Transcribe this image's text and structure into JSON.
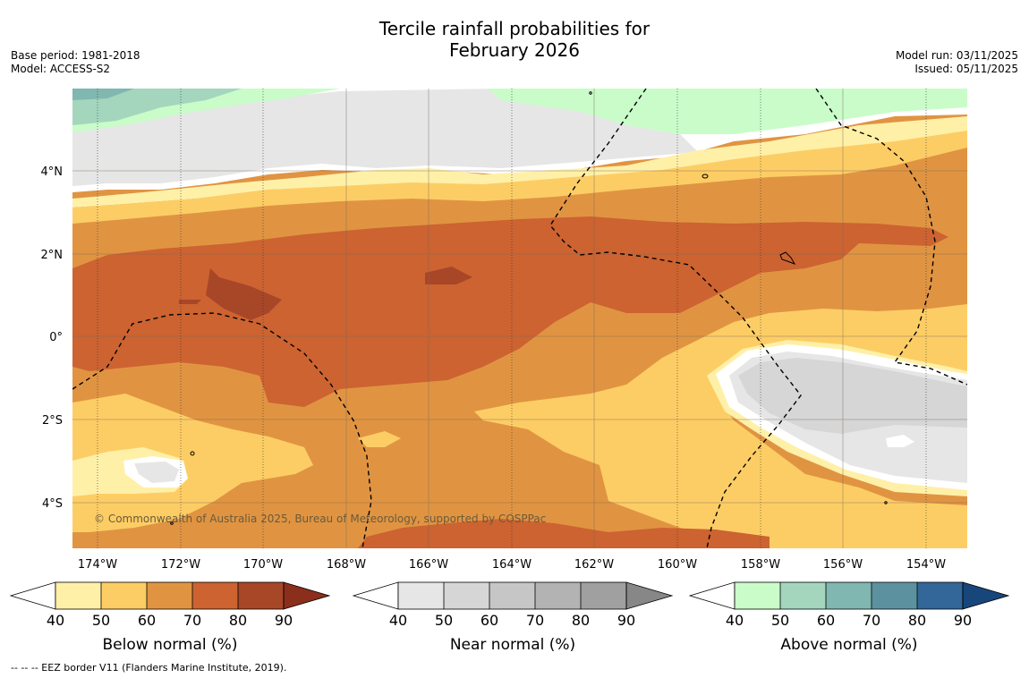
{
  "title": {
    "line1": "Tercile rainfall probabilities for",
    "line2": "February 2026"
  },
  "meta_left": {
    "base_period": "Base period: 1981-2018",
    "model": "Model: ACCESS-S2"
  },
  "meta_right": {
    "model_run": "Model run: 03/11/2025",
    "issued": "Issued: 05/11/2025"
  },
  "map": {
    "lon_ticks": [
      "174°W",
      "172°W",
      "170°W",
      "168°W",
      "166°W",
      "164°W",
      "162°W",
      "160°W",
      "158°W",
      "156°W",
      "154°W"
    ],
    "lat_ticks": [
      "4°N",
      "2°N",
      "0°",
      "2°S",
      "4°S"
    ],
    "copyright": "© Commonwealth of Australia 2025, Bureau of Meteorology, supported by COSPPac"
  },
  "colorbars": [
    {
      "label": "Below normal (%)",
      "ticks": [
        "40",
        "50",
        "60",
        "70",
        "80",
        "90"
      ],
      "colors": [
        "#fff0a8",
        "#fdcd65",
        "#e09442",
        "#cc6331",
        "#a84628",
        "#8c2e1c"
      ]
    },
    {
      "label": "Near normal (%)",
      "ticks": [
        "40",
        "50",
        "60",
        "70",
        "80",
        "90"
      ],
      "colors": [
        "#e6e6e6",
        "#d6d6d6",
        "#c6c6c6",
        "#b3b3b3",
        "#a0a0a0",
        "#878787"
      ]
    },
    {
      "label": "Above normal (%)",
      "ticks": [
        "40",
        "50",
        "60",
        "70",
        "80",
        "90"
      ],
      "colors": [
        "#c9fcc9",
        "#a4d6bd",
        "#80b7b0",
        "#5c92a0",
        "#336699",
        "#17467a"
      ]
    }
  ],
  "footer": "--  --  -- EEZ border V11 (Flanders Marine Institute, 2019)."
}
